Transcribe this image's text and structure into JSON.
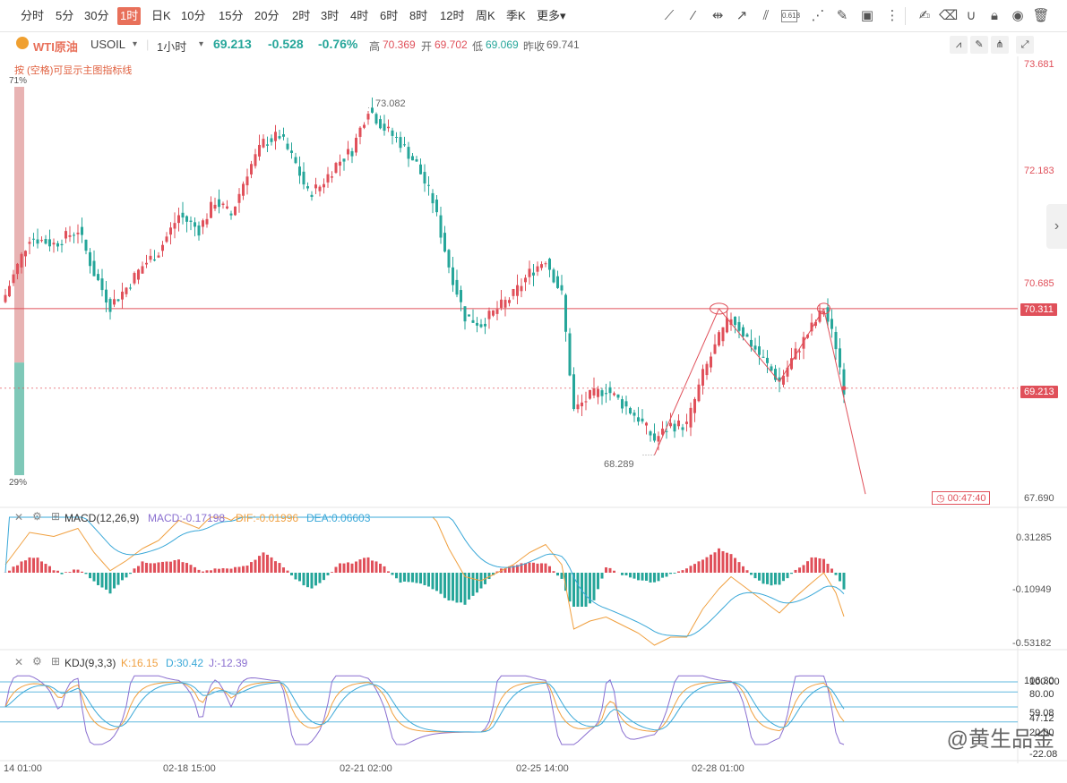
{
  "toolbar": {
    "periods": [
      "分时",
      "5分",
      "30分",
      "1时",
      "日K",
      "10分",
      "15分",
      "20分",
      "2时",
      "3时",
      "4时",
      "6时",
      "8时",
      "12时",
      "周K",
      "季K",
      "更多"
    ],
    "active_period": "1时",
    "fib_label": "0.618"
  },
  "symbol": {
    "name": "WTI原油",
    "code": "USOIL",
    "interval": "1小时",
    "price": "69.213",
    "change": "-0.528",
    "change_pct": "-0.76%",
    "high_label": "高",
    "high": "70.369",
    "open_label": "开",
    "open": "69.702",
    "low_label": "低",
    "low": "69.069",
    "prev_label": "昨收",
    "prev_close": "69.741"
  },
  "hint": "按 (空格)可显示主图指标线",
  "sentiment": {
    "top": "71%",
    "bottom": "29%",
    "bull": 71
  },
  "price_axis": {
    "labels": [
      "73.681",
      "72.183",
      "70.685",
      "67.690"
    ],
    "max": 73.681,
    "min": 67.69
  },
  "tags": {
    "resistance": "70.311",
    "current": "69.213",
    "countdown": "00:47:40"
  },
  "annotations": {
    "high": "73.082",
    "low": "68.289"
  },
  "macd": {
    "title": "MACD(12,26,9)",
    "macd_label": "MACD:-0.17198",
    "dif_label": "DIF:-0.01996",
    "dea_label": "DEA:0.06603",
    "axis": [
      "0.31285",
      "-0.10949",
      "-0.53182"
    ]
  },
  "kdj": {
    "title": "KDJ(9,3,3)",
    "k_label": "K:16.15",
    "d_label": "D:30.42",
    "j_label": "J:-12.39",
    "axis_top": "106.30",
    "axis": [
      "100.00",
      "80.00",
      "59.08",
      "47.12",
      "20.00",
      "-22.08"
    ]
  },
  "time_axis": [
    "14 01:00",
    "02-18 15:00",
    "02-21 02:00",
    "02-25 14:00",
    "02-28 01:00"
  ],
  "watermark": "@黄生品金",
  "colors": {
    "up": "#e0505a",
    "down": "#26a69a",
    "dif": "#f0a040",
    "dea": "#3aa8d8",
    "j": "#8a6fd0"
  },
  "chart_data": {
    "type": "candlestick",
    "title": "WTI原油 USOIL",
    "interval": "1小时",
    "ylim": [
      67.69,
      73.681
    ],
    "resistance_line": 70.311,
    "current_price": 69.213,
    "swing_high": 73.082,
    "swing_low": 68.289,
    "close_path": [
      [
        0,
        70.5
      ],
      [
        6,
        71.3
      ],
      [
        12,
        71.2
      ],
      [
        18,
        71.4
      ],
      [
        22,
        70.8
      ],
      [
        26,
        70.35
      ],
      [
        30,
        70.6
      ],
      [
        34,
        70.9
      ],
      [
        38,
        71.1
      ],
      [
        43,
        71.6
      ],
      [
        48,
        71.4
      ],
      [
        52,
        71.8
      ],
      [
        56,
        71.6
      ],
      [
        60,
        72.2
      ],
      [
        64,
        72.6
      ],
      [
        68,
        72.7
      ],
      [
        72,
        72.3
      ],
      [
        75,
        71.9
      ],
      [
        78,
        72.0
      ],
      [
        82,
        72.3
      ],
      [
        86,
        72.5
      ],
      [
        90,
        73.08
      ],
      [
        94,
        72.8
      ],
      [
        98,
        72.6
      ],
      [
        102,
        72.3
      ],
      [
        106,
        71.8
      ],
      [
        110,
        70.9
      ],
      [
        114,
        70.2
      ],
      [
        118,
        70.1
      ],
      [
        122,
        70.3
      ],
      [
        126,
        70.5
      ],
      [
        130,
        70.8
      ],
      [
        134,
        71.0
      ],
      [
        138,
        70.5
      ],
      [
        141,
        68.9
      ],
      [
        145,
        69.1
      ],
      [
        149,
        69.2
      ],
      [
        153,
        69.0
      ],
      [
        157,
        68.8
      ],
      [
        161,
        68.5
      ],
      [
        165,
        68.7
      ],
      [
        169,
        68.7
      ],
      [
        173,
        69.4
      ],
      [
        177,
        69.9
      ],
      [
        180,
        70.2
      ],
      [
        184,
        69.9
      ],
      [
        188,
        69.6
      ],
      [
        192,
        69.3
      ],
      [
        196,
        69.7
      ],
      [
        200,
        70.05
      ],
      [
        203,
        70.3
      ],
      [
        206,
        69.8
      ],
      [
        208,
        69.213
      ]
    ],
    "macd_series": {
      "hist_final": -0.17198,
      "dif": -0.01996,
      "dea": 0.06603
    },
    "kdj_series": {
      "K": 16.15,
      "D": 30.42,
      "J": -12.39
    }
  }
}
